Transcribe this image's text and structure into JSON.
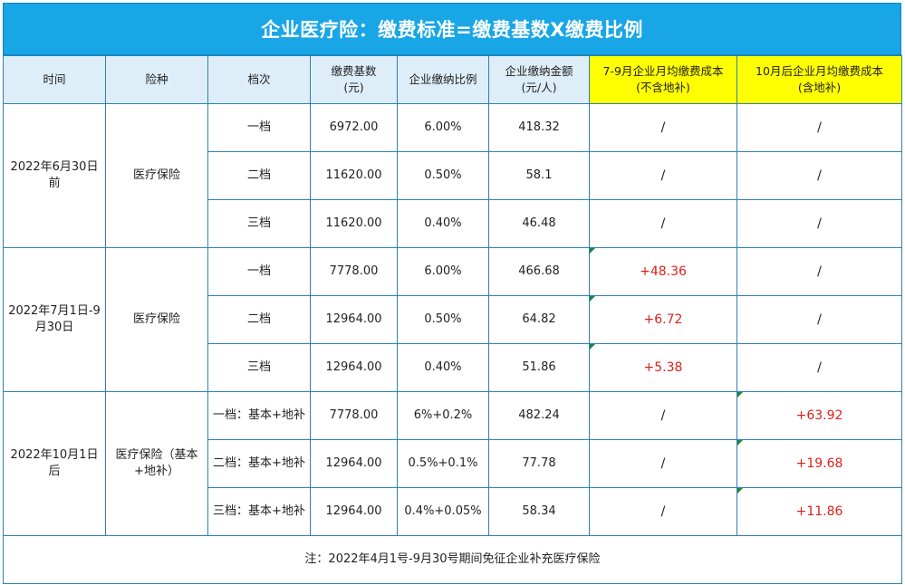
{
  "title": "企业医疗险：缴费标准=缴费基数X缴费比例",
  "headers": {
    "time": "时间",
    "type": "险种",
    "tier": "档次",
    "base": "缴费基数\n(元)",
    "rate": "企业缴纳比例",
    "amount": "企业缴纳金额\n(元/人)",
    "cost_jul_sep": "7-9月企业月均缴费成本\n(不含地补)",
    "cost_after_oct": "10月后企业月均缴费成本\n(含地补)"
  },
  "groups": [
    {
      "time": "2022年6月30日前",
      "type": "医疗保险",
      "rows": [
        {
          "tier": "一档",
          "base": "6972.00",
          "rate": "6.00%",
          "amount": "418.32",
          "cost_jul_sep": "/",
          "cost_after_oct": "/"
        },
        {
          "tier": "二档",
          "base": "11620.00",
          "rate": "0.50%",
          "amount": "58.1",
          "cost_jul_sep": "/",
          "cost_after_oct": "/"
        },
        {
          "tier": "三档",
          "base": "11620.00",
          "rate": "0.40%",
          "amount": "46.48",
          "cost_jul_sep": "/",
          "cost_after_oct": "/"
        }
      ]
    },
    {
      "time": "2022年7月1日-9月30日",
      "type": "医疗保险",
      "rows": [
        {
          "tier": "一档",
          "base": "7778.00",
          "rate": "6.00%",
          "amount": "466.68",
          "cost_jul_sep": "+48.36",
          "cost_after_oct": "/"
        },
        {
          "tier": "二档",
          "base": "12964.00",
          "rate": "0.50%",
          "amount": "64.82",
          "cost_jul_sep": "+6.72",
          "cost_after_oct": "/"
        },
        {
          "tier": "三档",
          "base": "12964.00",
          "rate": "0.40%",
          "amount": "51.86",
          "cost_jul_sep": "+5.38",
          "cost_after_oct": "/"
        }
      ]
    },
    {
      "time": "2022年10月1日后",
      "type": "医疗保险（基本+地补）",
      "rows": [
        {
          "tier": "一档：基本+地补",
          "base": "7778.00",
          "rate": "6%+0.2%",
          "amount": "482.24",
          "cost_jul_sep": "/",
          "cost_after_oct": "+63.92"
        },
        {
          "tier": "二档：基本+地补",
          "base": "12964.00",
          "rate": "0.5%+0.1%",
          "amount": "77.78",
          "cost_jul_sep": "/",
          "cost_after_oct": "+19.68"
        },
        {
          "tier": "三档：基本+地补",
          "base": "12964.00",
          "rate": "0.4%+0.05%",
          "amount": "58.34",
          "cost_jul_sep": "/",
          "cost_after_oct": "+11.86"
        }
      ]
    }
  ],
  "note": "注：2022年4月1号-9月30号期间免征企业补充医疗保险",
  "colors": {
    "title_bg": "#18a6e6",
    "header_bg": "#ddeef8",
    "highlight_header": "#ffff00",
    "increase_text": "#e0201b",
    "border": "#2f7fb5"
  }
}
